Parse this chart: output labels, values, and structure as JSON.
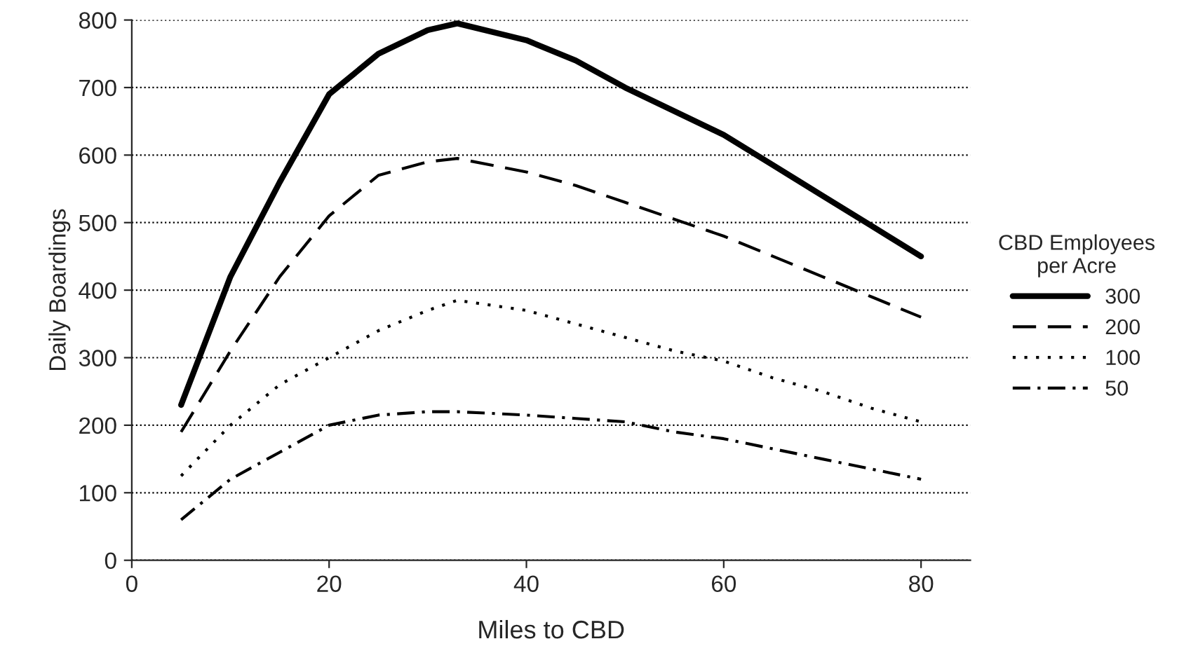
{
  "chart_data": {
    "type": "line",
    "xlabel": "Miles to CBD",
    "ylabel": "Daily Boardings",
    "legend_title": "CBD Employees\nper Acre",
    "x": [
      5,
      10,
      15,
      20,
      25,
      30,
      33,
      40,
      45,
      50,
      55,
      60,
      65,
      70,
      75,
      80
    ],
    "series": [
      {
        "name": "300",
        "color": "#000000",
        "line_style": "solid",
        "values": [
          230,
          420,
          560,
          690,
          750,
          785,
          795,
          770,
          740,
          700,
          665,
          630,
          585,
          540,
          495,
          450
        ]
      },
      {
        "name": "200",
        "color": "#000000",
        "line_style": "dashed",
        "values": [
          190,
          310,
          420,
          510,
          570,
          590,
          595,
          575,
          555,
          530,
          505,
          480,
          450,
          420,
          390,
          360
        ]
      },
      {
        "name": "100",
        "color": "#000000",
        "line_style": "dotted",
        "values": [
          125,
          200,
          260,
          300,
          340,
          370,
          385,
          370,
          350,
          330,
          310,
          295,
          270,
          250,
          225,
          205
        ]
      },
      {
        "name": "50",
        "color": "#000000",
        "line_style": "dashdot",
        "values": [
          60,
          120,
          160,
          200,
          215,
          220,
          220,
          215,
          210,
          205,
          190,
          180,
          165,
          150,
          135,
          120
        ]
      }
    ],
    "xlim": [
      0,
      85
    ],
    "xticks": [
      0,
      20,
      40,
      60,
      80
    ],
    "ylim": [
      0,
      800
    ],
    "yticks": [
      0,
      100,
      200,
      300,
      400,
      500,
      600,
      700,
      800
    ],
    "grid": "y",
    "legend": "right",
    "marker": "none"
  }
}
